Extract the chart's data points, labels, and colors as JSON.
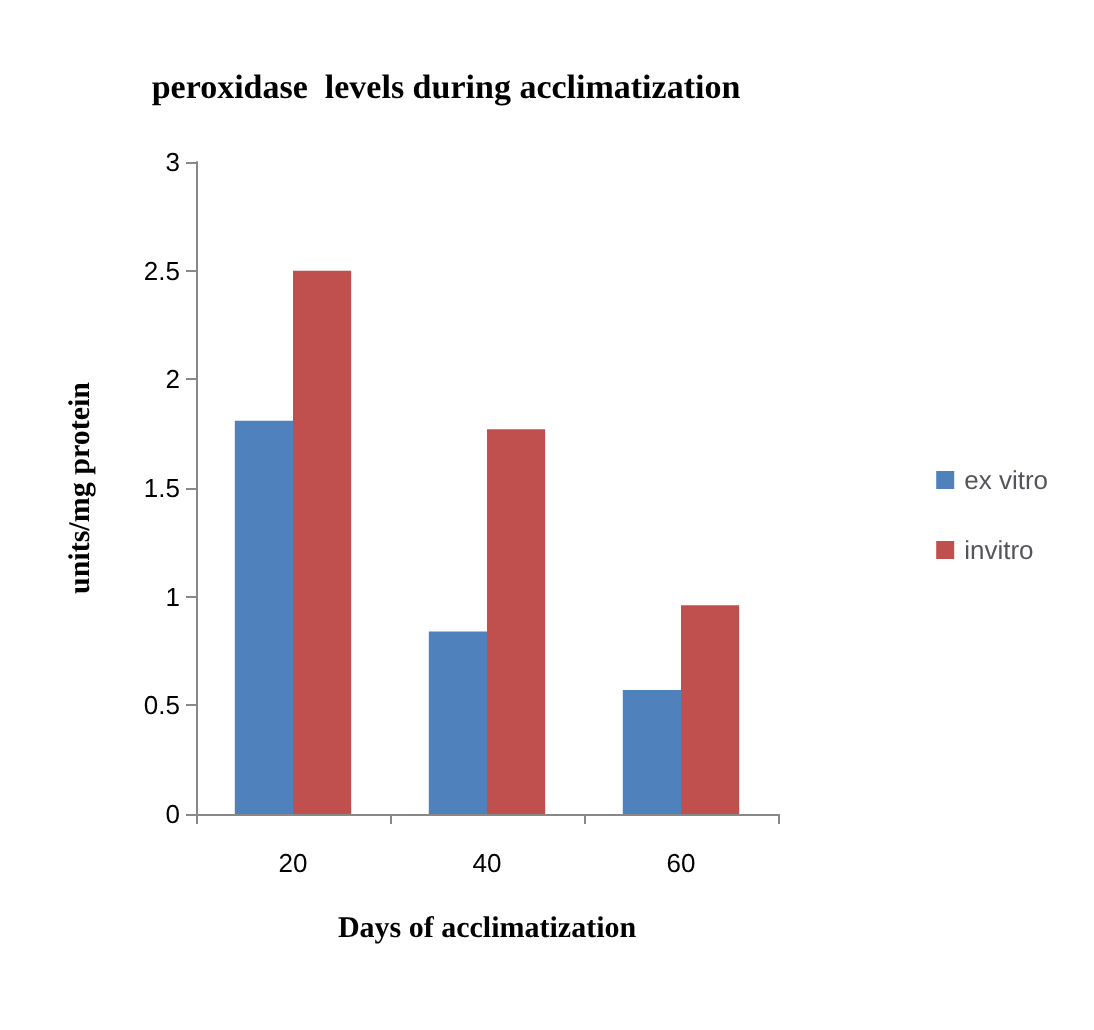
{
  "chart_data": {
    "type": "bar",
    "title": "peroxidase  levels during acclimatization",
    "xlabel": "Days of acclimatization",
    "ylabel": "units/mg protein",
    "categories": [
      "20",
      "40",
      "60"
    ],
    "series": [
      {
        "name": "ex vitro",
        "color": "#4f81bd",
        "values": [
          1.81,
          0.84,
          0.57
        ]
      },
      {
        "name": "invitro",
        "color": "#c0504d",
        "values": [
          2.5,
          1.77,
          0.96
        ]
      }
    ],
    "ylim": [
      0,
      3
    ],
    "yticks": [
      0,
      0.5,
      1,
      1.5,
      2,
      2.5,
      3
    ],
    "grid": false,
    "legend": "right"
  }
}
